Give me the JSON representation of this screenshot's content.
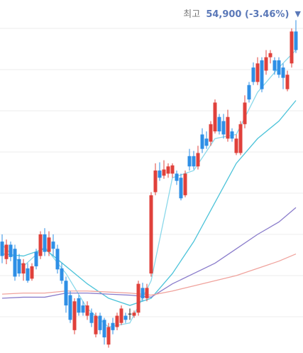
{
  "chart_data": {
    "type": "candlestick",
    "high_label": {
      "caption": "최고",
      "value": 54900,
      "label": "54,900 (-3.46%)",
      "marker": "▼"
    },
    "ylim": [
      38741,
      55879
    ],
    "yticks": [
      54500,
      52500,
      50500,
      48500,
      46500,
      44500,
      42500,
      40500
    ],
    "grid": true,
    "up_color": "#e0413b",
    "down_color": "#2e8fe6",
    "flat_color": "#222222",
    "open": [
      44150,
      43300,
      44000,
      43800,
      43300,
      42600,
      42850,
      42350,
      43650,
      43450,
      44500,
      43650,
      44150,
      43800,
      42850,
      42250,
      41550,
      39850,
      41400,
      41050,
      40550,
      40700,
      39650,
      40550,
      40350,
      39150,
      40200,
      40000,
      40200,
      40550,
      40650,
      40550,
      40700,
      41900,
      41400,
      42600,
      46550,
      47600,
      47350,
      47450,
      47450,
      47450,
      47250,
      46400,
      48300,
      48300,
      47800,
      49350,
      49150,
      49000,
      49500,
      50200,
      50000,
      49150,
      49500,
      48450,
      48450,
      49850,
      51750,
      52600,
      51900,
      52950,
      52450,
      53100,
      52950,
      52950,
      52600,
      51550,
      52800,
      54350
    ],
    "high": [
      44500,
      44250,
      44150,
      44000,
      43550,
      43300,
      43100,
      43100,
      43800,
      44650,
      44800,
      44650,
      44500,
      44000,
      43100,
      42450,
      41750,
      41400,
      41550,
      41250,
      41250,
      40900,
      40700,
      40700,
      40450,
      40200,
      40450,
      40700,
      41050,
      40700,
      40900,
      40800,
      42250,
      42150,
      42100,
      46550,
      47950,
      48000,
      48100,
      47950,
      47950,
      47600,
      47450,
      47600,
      48650,
      48550,
      48800,
      49650,
      49500,
      50000,
      51050,
      50350,
      50350,
      50550,
      49650,
      49350,
      50000,
      51250,
      51900,
      52850,
      53100,
      53100,
      53450,
      53450,
      53100,
      53100,
      52800,
      52450,
      54500,
      54900
    ],
    "low": [
      43100,
      43050,
      43200,
      42250,
      42450,
      42250,
      42150,
      42250,
      42800,
      43300,
      43450,
      43450,
      43450,
      42600,
      42100,
      40700,
      40200,
      39650,
      40550,
      40550,
      40350,
      40000,
      39500,
      39650,
      39150,
      39000,
      39650,
      39850,
      40100,
      40200,
      40350,
      40450,
      40550,
      41250,
      41250,
      42450,
      46400,
      47100,
      47200,
      47250,
      47250,
      46900,
      46150,
      46300,
      47600,
      47650,
      47650,
      48450,
      48650,
      48800,
      49400,
      49350,
      49150,
      49000,
      49000,
      48350,
      48350,
      49650,
      50900,
      51750,
      51750,
      51400,
      52250,
      52800,
      52250,
      52100,
      51550,
      51450,
      52600,
      53300
    ],
    "close": [
      43450,
      44000,
      43400,
      42450,
      42600,
      43100,
      42250,
      42950,
      42950,
      44500,
      43650,
      44350,
      43800,
      42800,
      42250,
      41050,
      40350,
      41250,
      40700,
      40700,
      41050,
      40200,
      40550,
      39850,
      39500,
      40000,
      39850,
      40550,
      40900,
      40350,
      40650,
      40700,
      42100,
      41400,
      41900,
      46400,
      47600,
      47250,
      47650,
      47800,
      47850,
      47100,
      46250,
      47450,
      47800,
      47800,
      48450,
      48650,
      48800,
      49850,
      50900,
      49500,
      49350,
      50200,
      49150,
      49150,
      49850,
      50900,
      51050,
      51900,
      52800,
      51550,
      53100,
      53300,
      52450,
      52250,
      52100,
      52250,
      54350,
      53450
    ],
    "lines": [
      {
        "color": "#8ad8ea",
        "x": [
          0,
          5,
          10,
          15,
          20,
          25,
          30,
          35,
          40,
          45,
          50,
          55,
          60,
          65,
          69
        ],
        "values": [
          44000,
          42950,
          43900,
          42600,
          40900,
          40000,
          40200,
          42250,
          47250,
          47600,
          49150,
          49350,
          51400,
          52600,
          53450
        ]
      },
      {
        "color": "#4cc3d9",
        "x": [
          0,
          5,
          10,
          15,
          20,
          25,
          30,
          35,
          40,
          45,
          50,
          55,
          60,
          65,
          69
        ],
        "values": [
          43550,
          43450,
          43800,
          42950,
          42100,
          41400,
          41050,
          41400,
          42600,
          44150,
          46050,
          47950,
          49150,
          50000,
          51000
        ]
      },
      {
        "color": "#8a7ccb",
        "x": [
          0,
          5,
          10,
          15,
          20,
          25,
          30,
          35,
          40,
          45,
          50,
          55,
          60,
          65,
          69
        ],
        "values": [
          41400,
          41450,
          41450,
          41650,
          41650,
          41600,
          41550,
          41450,
          42100,
          42600,
          43100,
          43800,
          44500,
          45100,
          45800
        ]
      },
      {
        "color": "#f0a39d",
        "x": [
          0,
          5,
          10,
          15,
          20,
          25,
          30,
          35,
          40,
          45,
          50,
          55,
          60,
          65,
          69
        ],
        "values": [
          41600,
          41650,
          41650,
          41750,
          41750,
          41700,
          41650,
          41550,
          41750,
          42000,
          42250,
          42500,
          42850,
          43200,
          43550
        ]
      }
    ]
  }
}
